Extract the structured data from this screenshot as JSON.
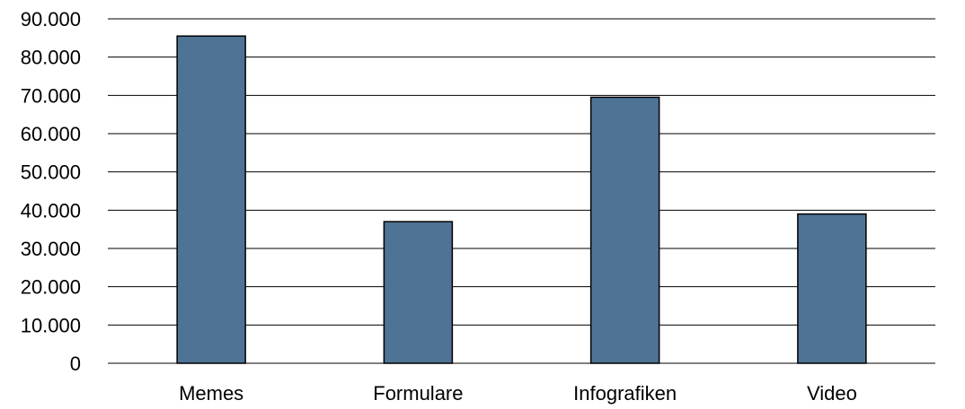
{
  "chart_data": {
    "type": "bar",
    "categories": [
      "Memes",
      "Formulare",
      "Infografiken",
      "Video"
    ],
    "values": [
      85500,
      37000,
      69500,
      39000
    ],
    "title": "",
    "xlabel": "",
    "ylabel": "",
    "ylim": [
      0,
      90000
    ],
    "yticks": [
      0,
      10000,
      20000,
      30000,
      40000,
      50000,
      60000,
      70000,
      80000,
      90000
    ],
    "ytick_labels": [
      "0",
      "10.000",
      "20.000",
      "30.000",
      "40.000",
      "50.000",
      "60.000",
      "70.000",
      "80.000",
      "90.000"
    ],
    "grid": true,
    "legend": "none",
    "bar_color": "#4e7395",
    "bar_edge_color": "#000000"
  }
}
